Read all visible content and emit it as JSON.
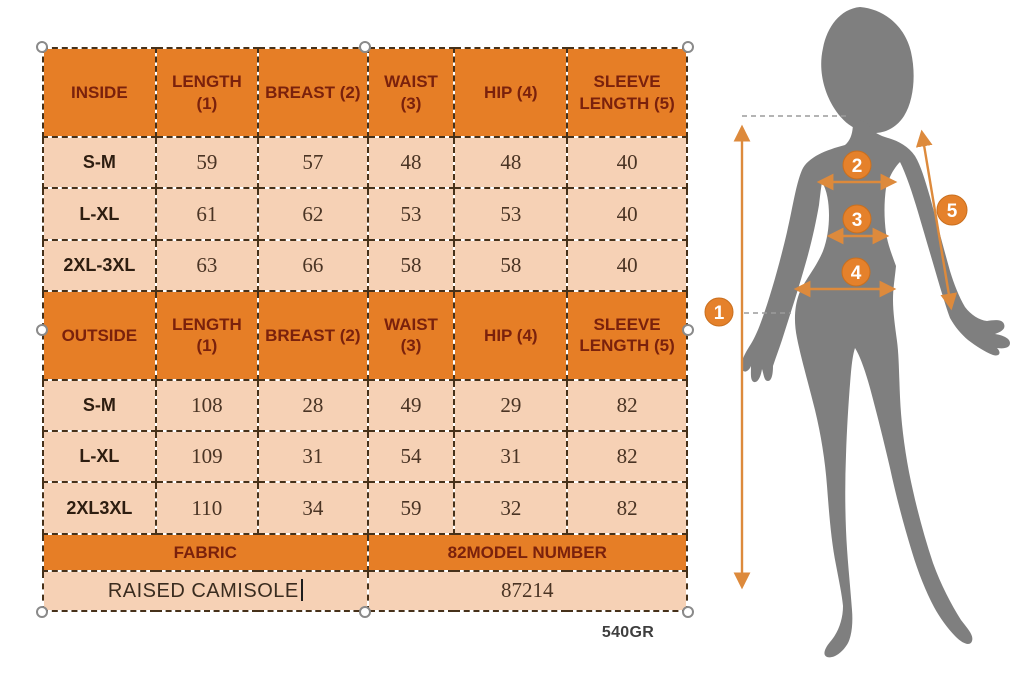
{
  "colors": {
    "header_orange": "#e67e26",
    "row_peach": "#f6d1b5",
    "header_text": "#7a210c",
    "border_brown": "#46311a",
    "arrow_orange": "#dd8a3c",
    "badge_orange": "#e5812b",
    "silhouette_gray": "#7f7f7f"
  },
  "size_chart": {
    "sections": [
      {
        "header": [
          "INSIDE",
          "LENGTH (1)",
          "BREAST (2)",
          "WAIST (3)",
          "HIP (4)",
          "SLEEVE LENGTH (5)"
        ],
        "rows": [
          [
            "S-M",
            "59",
            "57",
            "48",
            "48",
            "40"
          ],
          [
            "L-XL",
            "61",
            "62",
            "53",
            "53",
            "40"
          ],
          [
            "2XL-3XL",
            "63",
            "66",
            "58",
            "58",
            "40"
          ]
        ]
      },
      {
        "header": [
          "OUTSIDE",
          "LENGTH (1)",
          "BREAST (2)",
          "WAIST (3)",
          "HIP (4)",
          "SLEEVE LENGTH (5)"
        ],
        "rows": [
          [
            "S-M",
            "108",
            "28",
            "49",
            "29",
            "82"
          ],
          [
            "L-XL",
            "109",
            "31",
            "54",
            "31",
            "82"
          ],
          [
            "2XL3XL",
            "110",
            "34",
            "59",
            "32",
            "82"
          ]
        ]
      }
    ],
    "footer": {
      "headers": [
        "FABRIC",
        "82MODEL NUMBER"
      ],
      "values": [
        "RAISED CAMISOLE",
        "87214"
      ]
    },
    "weight_label": "540GR"
  },
  "figure": {
    "points": [
      {
        "num": "1"
      },
      {
        "num": "2"
      },
      {
        "num": "3"
      },
      {
        "num": "4"
      },
      {
        "num": "5"
      }
    ]
  }
}
